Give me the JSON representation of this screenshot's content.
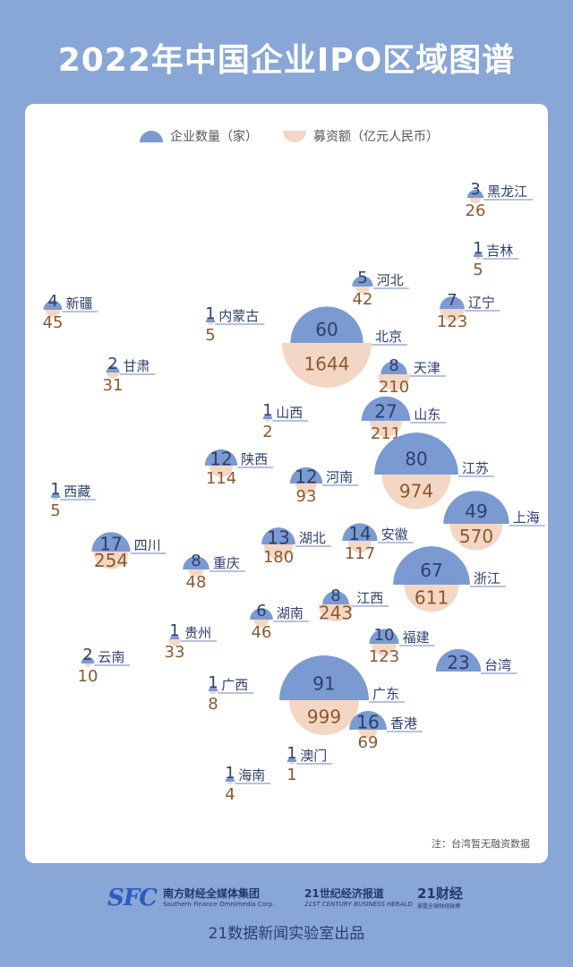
{
  "title": "2022年中国企业IPO区域图谱",
  "legend": {
    "count_label": "企业数量（家）",
    "amount_label": "募资额（亿元人民币）"
  },
  "colors": {
    "count": "#7b9ad2",
    "amount": "#f4d6c4",
    "count_text": "#2f3f6a",
    "amount_text": "#8a5a2e"
  },
  "note": "注：台湾暂无融资数据",
  "footer": {
    "sfc_mark": "SFC",
    "sfc_name": "南方财经全媒体集团",
    "sfc_en": "Southern Finance Omnimedia Corp.",
    "c21_name": "21世纪经济报道",
    "c21_en": "21ST CENTURY BUSINESS HERALD",
    "f21_name": "21财经",
    "f21_sub": "掌握全球财经脉搏",
    "credit": "21数据新闻实验室出品"
  },
  "chart_data": {
    "type": "map-bubble",
    "series": [
      {
        "name": "企业数量（家）",
        "unit": "家"
      },
      {
        "name": "募资额（亿元人民币）",
        "unit": "亿元人民币"
      }
    ],
    "regions": [
      {
        "name": "黑龙江",
        "count": 3,
        "amount": "26"
      },
      {
        "name": "吉林",
        "count": 1,
        "amount": "5"
      },
      {
        "name": "河北",
        "count": 5,
        "amount": "42"
      },
      {
        "name": "辽宁",
        "count": 7,
        "amount": "123"
      },
      {
        "name": "新疆",
        "count": 4,
        "amount": "45"
      },
      {
        "name": "内蒙古",
        "count": 1,
        "amount": "5"
      },
      {
        "name": "北京",
        "count": 60,
        "amount": "1644"
      },
      {
        "name": "甘肃",
        "count": 2,
        "amount": "31"
      },
      {
        "name": "天津",
        "count": 8,
        "amount": "210"
      },
      {
        "name": "山西",
        "count": 1,
        "amount": "2"
      },
      {
        "name": "山东",
        "count": 27,
        "amount": "211"
      },
      {
        "name": "陕西",
        "count": 12,
        "amount": "114"
      },
      {
        "name": "江苏",
        "count": 80,
        "amount": "974"
      },
      {
        "name": "河南",
        "count": 12,
        "amount": "93"
      },
      {
        "name": "西藏",
        "count": 1,
        "amount": "5"
      },
      {
        "name": "上海",
        "count": 49,
        "amount": "570"
      },
      {
        "name": "四川",
        "count": 17,
        "amount": "254"
      },
      {
        "name": "湖北",
        "count": 13,
        "amount": "180"
      },
      {
        "name": "安徽",
        "count": 14,
        "amount": "117"
      },
      {
        "name": "重庆",
        "count": 8,
        "amount": "48"
      },
      {
        "name": "浙江",
        "count": 67,
        "amount": "611"
      },
      {
        "name": "湖南",
        "count": 6,
        "amount": "46"
      },
      {
        "name": "江西",
        "count": 8,
        "amount": "243"
      },
      {
        "name": "贵州",
        "count": 1,
        "amount": "33"
      },
      {
        "name": "福建",
        "count": 10,
        "amount": "123"
      },
      {
        "name": "云南",
        "count": 2,
        "amount": "10"
      },
      {
        "name": "台湾",
        "count": 23,
        "amount": ""
      },
      {
        "name": "广西",
        "count": 1,
        "amount": "8"
      },
      {
        "name": "广东",
        "count": 91,
        "amount": "999"
      },
      {
        "name": "香港",
        "count": 16,
        "amount": "69"
      },
      {
        "name": "澳门",
        "count": 1,
        "amount": "1"
      },
      {
        "name": "海南",
        "count": 1,
        "amount": "4"
      }
    ]
  }
}
